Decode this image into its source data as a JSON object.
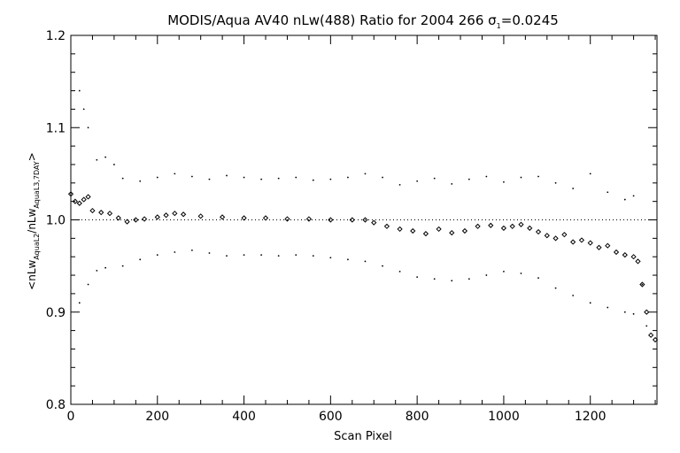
{
  "chart_data": {
    "type": "scatter",
    "title": "MODIS/Aqua AV40 nLw(488) Ratio for 2004 266 σ",
    "title_sigma_subscript": "1",
    "title_sigma_value": "=0.0245",
    "xlabel": "Scan Pixel",
    "ylabel_parts": {
      "prefix": "<nLw",
      "sub1": "AquaL2",
      "mid": "/nLw",
      "sub2": "AquaL3,7DAY",
      "suffix": ">"
    },
    "xlim": [
      0,
      1354
    ],
    "ylim": [
      0.8,
      1.2
    ],
    "x_ticks": [
      0,
      200,
      400,
      600,
      800,
      1000,
      1200
    ],
    "x_tick_labels": [
      "0",
      "200",
      "400",
      "600",
      "800",
      "1000",
      "1200"
    ],
    "y_ticks": [
      0.8,
      0.9,
      1.0,
      1.1,
      1.2
    ],
    "y_tick_labels": [
      "0.8",
      "0.9",
      "1.0",
      "1.1",
      "1.2"
    ],
    "reference_line": 1.0,
    "grid": false,
    "series": [
      {
        "role": "mean",
        "marker": "diamond",
        "points": [
          [
            0,
            1.028
          ],
          [
            10,
            1.02
          ],
          [
            20,
            1.018
          ],
          [
            30,
            1.022
          ],
          [
            40,
            1.025
          ],
          [
            50,
            1.01
          ],
          [
            70,
            1.008
          ],
          [
            90,
            1.007
          ],
          [
            110,
            1.002
          ],
          [
            130,
            0.998
          ],
          [
            150,
            1.0
          ],
          [
            170,
            1.001
          ],
          [
            200,
            1.003
          ],
          [
            220,
            1.005
          ],
          [
            240,
            1.007
          ],
          [
            260,
            1.006
          ],
          [
            300,
            1.004
          ],
          [
            350,
            1.003
          ],
          [
            400,
            1.002
          ],
          [
            450,
            1.002
          ],
          [
            500,
            1.001
          ],
          [
            550,
            1.001
          ],
          [
            600,
            1.0
          ],
          [
            650,
            1.0
          ],
          [
            680,
            1.0
          ],
          [
            700,
            0.997
          ],
          [
            730,
            0.993
          ],
          [
            760,
            0.99
          ],
          [
            790,
            0.988
          ],
          [
            820,
            0.985
          ],
          [
            850,
            0.99
          ],
          [
            880,
            0.986
          ],
          [
            910,
            0.988
          ],
          [
            940,
            0.993
          ],
          [
            970,
            0.994
          ],
          [
            1000,
            0.991
          ],
          [
            1020,
            0.993
          ],
          [
            1040,
            0.995
          ],
          [
            1060,
            0.991
          ],
          [
            1080,
            0.987
          ],
          [
            1100,
            0.983
          ],
          [
            1120,
            0.98
          ],
          [
            1140,
            0.984
          ],
          [
            1160,
            0.976
          ],
          [
            1180,
            0.978
          ],
          [
            1200,
            0.975
          ],
          [
            1220,
            0.97
          ],
          [
            1240,
            0.972
          ],
          [
            1260,
            0.965
          ],
          [
            1280,
            0.962
          ],
          [
            1300,
            0.96
          ],
          [
            1310,
            0.955
          ],
          [
            1320,
            0.93
          ],
          [
            1330,
            0.9
          ],
          [
            1340,
            0.875
          ],
          [
            1350,
            0.87
          ]
        ]
      },
      {
        "role": "upper-bound",
        "marker": "dot",
        "points": [
          [
            20,
            1.14
          ],
          [
            30,
            1.12
          ],
          [
            40,
            1.1
          ],
          [
            60,
            1.065
          ],
          [
            80,
            1.068
          ],
          [
            100,
            1.06
          ],
          [
            120,
            1.045
          ],
          [
            160,
            1.042
          ],
          [
            200,
            1.046
          ],
          [
            240,
            1.05
          ],
          [
            280,
            1.047
          ],
          [
            320,
            1.044
          ],
          [
            360,
            1.048
          ],
          [
            400,
            1.046
          ],
          [
            440,
            1.044
          ],
          [
            480,
            1.045
          ],
          [
            520,
            1.046
          ],
          [
            560,
            1.043
          ],
          [
            600,
            1.044
          ],
          [
            640,
            1.046
          ],
          [
            680,
            1.05
          ],
          [
            720,
            1.046
          ],
          [
            760,
            1.038
          ],
          [
            800,
            1.042
          ],
          [
            840,
            1.045
          ],
          [
            880,
            1.039
          ],
          [
            920,
            1.044
          ],
          [
            960,
            1.047
          ],
          [
            1000,
            1.041
          ],
          [
            1040,
            1.046
          ],
          [
            1080,
            1.047
          ],
          [
            1120,
            1.04
          ],
          [
            1160,
            1.034
          ],
          [
            1200,
            1.05
          ],
          [
            1240,
            1.03
          ],
          [
            1280,
            1.022
          ],
          [
            1300,
            1.026
          ],
          [
            1320,
            0.93
          ]
        ]
      },
      {
        "role": "lower-bound",
        "marker": "dot",
        "points": [
          [
            20,
            0.91
          ],
          [
            40,
            0.93
          ],
          [
            60,
            0.945
          ],
          [
            80,
            0.948
          ],
          [
            120,
            0.95
          ],
          [
            160,
            0.957
          ],
          [
            200,
            0.962
          ],
          [
            240,
            0.965
          ],
          [
            280,
            0.967
          ],
          [
            320,
            0.964
          ],
          [
            360,
            0.961
          ],
          [
            400,
            0.962
          ],
          [
            440,
            0.962
          ],
          [
            480,
            0.961
          ],
          [
            520,
            0.962
          ],
          [
            560,
            0.961
          ],
          [
            600,
            0.959
          ],
          [
            640,
            0.957
          ],
          [
            680,
            0.955
          ],
          [
            720,
            0.95
          ],
          [
            760,
            0.944
          ],
          [
            800,
            0.938
          ],
          [
            840,
            0.936
          ],
          [
            880,
            0.934
          ],
          [
            920,
            0.936
          ],
          [
            960,
            0.94
          ],
          [
            1000,
            0.944
          ],
          [
            1040,
            0.942
          ],
          [
            1080,
            0.937
          ],
          [
            1120,
            0.926
          ],
          [
            1160,
            0.918
          ],
          [
            1200,
            0.91
          ],
          [
            1240,
            0.905
          ],
          [
            1280,
            0.9
          ],
          [
            1300,
            0.898
          ],
          [
            1330,
            0.885
          ]
        ]
      }
    ]
  }
}
